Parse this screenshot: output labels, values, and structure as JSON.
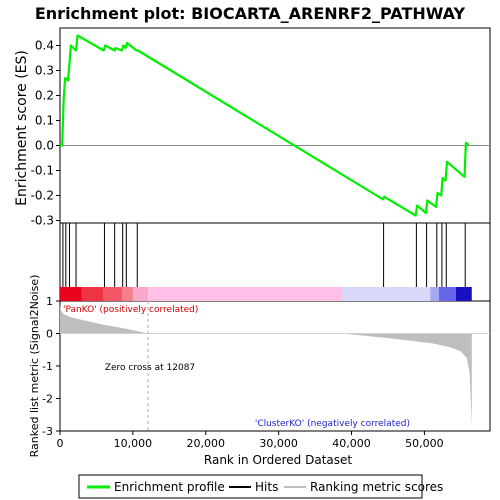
{
  "chart_data": {
    "type": "line",
    "title": "Enrichment plot: BIOCARTA_ARENRF2_PATHWAY",
    "xlabel": "Rank in Ordered Dataset",
    "xlim": [
      0,
      59000
    ],
    "x_ticks": [
      0,
      10000,
      20000,
      30000,
      40000,
      50000
    ],
    "x_tick_labels": [
      "0",
      "10,000",
      "20,000",
      "30,000",
      "40,000",
      "50,000"
    ],
    "es_panel": {
      "ylabel": "Enrichment score (ES)",
      "ylim": [
        -0.31,
        0.47
      ],
      "y_ticks": [
        -0.3,
        -0.2,
        -0.1,
        0.0,
        0.1,
        0.2,
        0.3,
        0.4
      ],
      "y_tick_labels": [
        "-0.3",
        "-0.2",
        "-0.1",
        "0.0",
        "0.1",
        "0.2",
        "0.3",
        "0.4"
      ],
      "series": [
        {
          "name": "Enrichment profile",
          "color": "#00ee00",
          "x": [
            0,
            300,
            500,
            700,
            1100,
            1300,
            1500,
            2200,
            2400,
            6000,
            6200,
            7500,
            7600,
            8500,
            8700,
            9000,
            9200,
            10500,
            10700,
            44300,
            44500,
            48800,
            49000,
            50200,
            50400,
            51600,
            51800,
            52300,
            52500,
            52900,
            53100,
            55500,
            55700,
            56000
          ],
          "y": [
            0.0,
            0.0,
            0.18,
            0.27,
            0.26,
            0.33,
            0.4,
            0.38,
            0.44,
            0.38,
            0.4,
            0.38,
            0.39,
            0.38,
            0.4,
            0.39,
            0.41,
            0.38,
            0.38,
            -0.215,
            -0.205,
            -0.28,
            -0.24,
            -0.27,
            -0.22,
            -0.245,
            -0.19,
            -0.2,
            -0.13,
            -0.14,
            -0.065,
            -0.125,
            0.01,
            0.005
          ]
        }
      ]
    },
    "hits": {
      "name": "Hits",
      "color": "#000000",
      "x": [
        400,
        800,
        1300,
        2200,
        6100,
        7500,
        8600,
        9100,
        10600,
        44400,
        48900,
        50300,
        51700,
        52400,
        53000,
        55600
      ]
    },
    "rank_bar": {
      "segments": [
        {
          "from": 0,
          "to": 3000,
          "color": "#e8001c"
        },
        {
          "from": 3000,
          "to": 6000,
          "color": "#ee3344"
        },
        {
          "from": 6000,
          "to": 8500,
          "color": "#f25566"
        },
        {
          "from": 8500,
          "to": 10000,
          "color": "#f5808c"
        },
        {
          "from": 10000,
          "to": 12087,
          "color": "#f8a8c8"
        },
        {
          "from": 12087,
          "to": 38700,
          "color": "#ffc0e8"
        },
        {
          "from": 38700,
          "to": 50800,
          "color": "#d8d8f8"
        },
        {
          "from": 50800,
          "to": 52000,
          "color": "#a8a8f0"
        },
        {
          "from": 52000,
          "to": 54300,
          "color": "#6666e8"
        },
        {
          "from": 54300,
          "to": 56500,
          "color": "#1a10c0"
        }
      ]
    },
    "metric_panel": {
      "ylabel": "Ranked list metric (Signal2Noise)",
      "ylim": [
        -3,
        1
      ],
      "y_ticks": [
        -3,
        -2,
        -1,
        0,
        1
      ],
      "y_tick_labels": [
        "-3",
        "-2",
        "-1",
        "0",
        "1"
      ],
      "series": [
        {
          "name": "Ranking metric scores",
          "color": "#bebebe",
          "x": [
            0,
            100,
            500,
            1500,
            3000,
            6000,
            9000,
            12087,
            20000,
            30000,
            38700,
            44000,
            48000,
            51000,
            53500,
            55000,
            55800,
            56200,
            56500
          ],
          "y": [
            0.9,
            0.72,
            0.6,
            0.5,
            0.42,
            0.27,
            0.15,
            0.0,
            0.0,
            0.0,
            0.0,
            -0.12,
            -0.22,
            -0.3,
            -0.42,
            -0.55,
            -0.75,
            -1.2,
            -2.85
          ]
        }
      ],
      "annotations": {
        "positive_label": "'PanKO' (positively correlated)",
        "negative_label": "'ClusterKO' (negatively correlated)",
        "zero_cross_label": "Zero cross at 12087",
        "zero_cross_x": 12087
      }
    },
    "legend": {
      "position": "bottom",
      "items": [
        {
          "label": "Enrichment profile",
          "color": "#00ee00",
          "kind": "line"
        },
        {
          "label": "Hits",
          "color": "#000000",
          "kind": "line"
        },
        {
          "label": "Ranking metric scores",
          "color": "#bebebe",
          "kind": "line"
        }
      ]
    }
  }
}
